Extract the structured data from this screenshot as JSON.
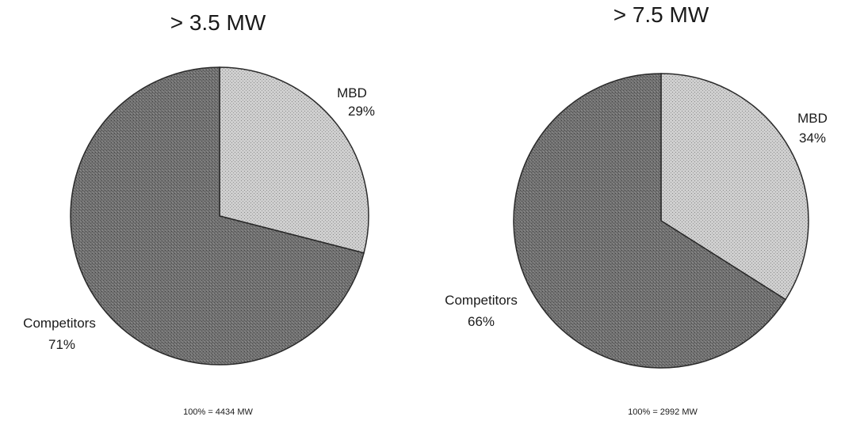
{
  "chart_data": [
    {
      "type": "pie",
      "title": "> 3.5 MW",
      "slices": [
        {
          "label": "MBD",
          "value": 29,
          "value_text": "29%"
        },
        {
          "label": "Competitors",
          "value": 71,
          "value_text": "71%"
        }
      ],
      "total_note": "100% = 4434 MW"
    },
    {
      "type": "pie",
      "title": "> 7.5 MW",
      "slices": [
        {
          "label": "MBD",
          "value": 34,
          "value_text": "34%"
        },
        {
          "label": "Competitors",
          "value": 66,
          "value_text": "66%"
        }
      ],
      "total_note": "100% = 2992 MW"
    }
  ],
  "colors": {
    "mbd": "#c2c2c2",
    "competitors": "#6a6a6a",
    "edge": "#2a2a2a"
  }
}
